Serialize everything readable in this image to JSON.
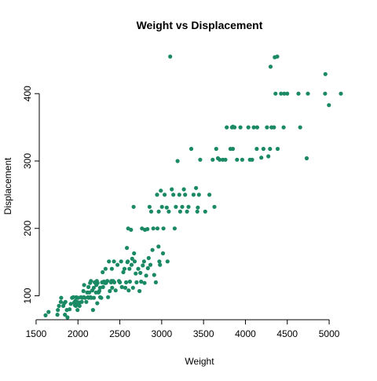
{
  "chart_data": {
    "type": "scatter",
    "title": "Weight vs Displacement",
    "xlabel": "Weight",
    "ylabel": "Displacement",
    "xlim": [
      1613,
      5140
    ],
    "ylim": [
      68,
      455
    ],
    "x_ticks": [
      1500,
      2000,
      2500,
      3000,
      3500,
      4000,
      4500,
      5000
    ],
    "y_ticks": [
      100,
      200,
      300,
      400
    ],
    "point_color": "#1b8a64",
    "grid": false,
    "legend": "none",
    "series": [
      {
        "points": [
          [
            1613,
            71
          ],
          [
            1649,
            76
          ],
          [
            1755,
            72
          ],
          [
            1760,
            79
          ],
          [
            1773,
            85
          ],
          [
            1795,
            91
          ],
          [
            1800,
            97
          ],
          [
            1825,
            85
          ],
          [
            1835,
            89
          ],
          [
            1845,
            72
          ],
          [
            1850,
            91
          ],
          [
            1867,
            79
          ],
          [
            1875,
            68
          ],
          [
            1900,
            80
          ],
          [
            1915,
            88
          ],
          [
            1930,
            97
          ],
          [
            1945,
            98
          ],
          [
            1955,
            90
          ],
          [
            1965,
            86
          ],
          [
            1968,
            92
          ],
          [
            1975,
            85
          ],
          [
            1980,
            98
          ],
          [
            1985,
            97
          ],
          [
            1990,
            91
          ],
          [
            1995,
            79
          ],
          [
            2000,
            89
          ],
          [
            2003,
            97
          ],
          [
            2019,
            85
          ],
          [
            2020,
            90
          ],
          [
            2035,
            98
          ],
          [
            2045,
            91
          ],
          [
            2050,
            97
          ],
          [
            2065,
            107
          ],
          [
            2070,
            98
          ],
          [
            2074,
            116
          ],
          [
            2085,
            97
          ],
          [
            2100,
            91
          ],
          [
            2110,
            105
          ],
          [
            2120,
            98
          ],
          [
            2125,
            113
          ],
          [
            2130,
            97
          ],
          [
            2135,
            105
          ],
          [
            2145,
            119
          ],
          [
            2150,
            98
          ],
          [
            2155,
            122
          ],
          [
            2160,
            97
          ],
          [
            2171,
            108
          ],
          [
            2180,
            79
          ],
          [
            2189,
            112
          ],
          [
            2190,
            97
          ],
          [
            2200,
            120
          ],
          [
            2215,
            105
          ],
          [
            2220,
            116
          ],
          [
            2226,
            122
          ],
          [
            2230,
            89
          ],
          [
            2234,
            119
          ],
          [
            2245,
            105
          ],
          [
            2255,
            107
          ],
          [
            2264,
            112
          ],
          [
            2265,
            98
          ],
          [
            2278,
            97
          ],
          [
            2288,
            120
          ],
          [
            2295,
            135
          ],
          [
            2300,
            113
          ],
          [
            2310,
            121
          ],
          [
            2320,
            119
          ],
          [
            2330,
            140
          ],
          [
            2335,
            119
          ],
          [
            2350,
            122
          ],
          [
            2360,
            98
          ],
          [
            2370,
            151
          ],
          [
            2380,
            107
          ],
          [
            2395,
            120
          ],
          [
            2400,
            122
          ],
          [
            2405,
            140
          ],
          [
            2408,
            112
          ],
          [
            2420,
            122
          ],
          [
            2430,
            151
          ],
          [
            2434,
            120
          ],
          [
            2450,
            108
          ],
          [
            2472,
            146
          ],
          [
            2490,
            122
          ],
          [
            2500,
            120
          ],
          [
            2515,
            151
          ],
          [
            2525,
            113
          ],
          [
            2542,
            135
          ],
          [
            2556,
            140
          ],
          [
            2565,
            112
          ],
          [
            2575,
            120
          ],
          [
            2585,
            171
          ],
          [
            2590,
            150
          ],
          [
            2595,
            151
          ],
          [
            2600,
            200
          ],
          [
            2605,
            108
          ],
          [
            2615,
            140
          ],
          [
            2620,
            121
          ],
          [
            2634,
            198
          ],
          [
            2640,
            146
          ],
          [
            2648,
            155
          ],
          [
            2657,
            112
          ],
          [
            2665,
            232
          ],
          [
            2670,
            163
          ],
          [
            2678,
            151
          ],
          [
            2690,
            133
          ],
          [
            2700,
            120
          ],
          [
            2720,
            140
          ],
          [
            2735,
            107
          ],
          [
            2745,
            134
          ],
          [
            2755,
            121
          ],
          [
            2765,
            200
          ],
          [
            2774,
            145
          ],
          [
            2789,
            151
          ],
          [
            2795,
            119
          ],
          [
            2800,
            198
          ],
          [
            2815,
            130
          ],
          [
            2830,
            199
          ],
          [
            2835,
            141
          ],
          [
            2845,
            156
          ],
          [
            2855,
            232
          ],
          [
            2865,
            146
          ],
          [
            2875,
            225
          ],
          [
            2890,
            168
          ],
          [
            2900,
            200
          ],
          [
            2910,
            131
          ],
          [
            2930,
            120
          ],
          [
            2945,
            250
          ],
          [
            2950,
            200
          ],
          [
            2962,
            173
          ],
          [
            2965,
            225
          ],
          [
            2972,
            151
          ],
          [
            2980,
            146
          ],
          [
            2990,
            256
          ],
          [
            3003,
            232
          ],
          [
            3015,
            163
          ],
          [
            3021,
            200
          ],
          [
            3035,
            250
          ],
          [
            3060,
            231
          ],
          [
            3070,
            151
          ],
          [
            3085,
            225
          ],
          [
            3102,
            455
          ],
          [
            3120,
            258
          ],
          [
            3139,
            250
          ],
          [
            3155,
            200
          ],
          [
            3169,
            232
          ],
          [
            3190,
            300
          ],
          [
            3210,
            250
          ],
          [
            3221,
            225
          ],
          [
            3245,
            232
          ],
          [
            3265,
            258
          ],
          [
            3280,
            250
          ],
          [
            3302,
            225
          ],
          [
            3320,
            232
          ],
          [
            3353,
            318
          ],
          [
            3380,
            250
          ],
          [
            3410,
            260
          ],
          [
            3425,
            225
          ],
          [
            3432,
            231
          ],
          [
            3445,
            250
          ],
          [
            3460,
            302
          ],
          [
            3520,
            225
          ],
          [
            3570,
            250
          ],
          [
            3609,
            302
          ],
          [
            3630,
            232
          ],
          [
            3651,
            318
          ],
          [
            3672,
            304
          ],
          [
            3693,
            302
          ],
          [
            3730,
            302
          ],
          [
            3761,
            302
          ],
          [
            3777,
            350
          ],
          [
            3821,
            318
          ],
          [
            3840,
            350
          ],
          [
            3850,
            318
          ],
          [
            3870,
            350
          ],
          [
            3900,
            302
          ],
          [
            3940,
            350
          ],
          [
            3962,
            302
          ],
          [
            4035,
            350
          ],
          [
            4054,
            302
          ],
          [
            4080,
            302
          ],
          [
            4100,
            350
          ],
          [
            4135,
            318
          ],
          [
            4140,
            350
          ],
          [
            4190,
            305
          ],
          [
            4215,
            318
          ],
          [
            4257,
            350
          ],
          [
            4274,
            307
          ],
          [
            4294,
            318
          ],
          [
            4312,
            350
          ],
          [
            4341,
            350
          ],
          [
            4360,
            400
          ],
          [
            4385,
            318
          ],
          [
            4425,
            400
          ],
          [
            4456,
            350
          ],
          [
            4464,
            400
          ],
          [
            4499,
            400
          ],
          [
            4633,
            400
          ],
          [
            4654,
            350
          ],
          [
            4732,
            304
          ],
          [
            4746,
            400
          ],
          [
            4951,
            400
          ],
          [
            4955,
            429
          ],
          [
            4997,
            383
          ],
          [
            5140,
            400
          ],
          [
            4350,
            454
          ],
          [
            4380,
            455
          ],
          [
            4300,
            440
          ],
          [
            3850,
            351
          ]
        ]
      }
    ]
  }
}
